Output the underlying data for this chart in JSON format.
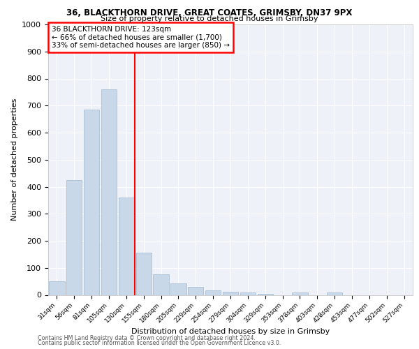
{
  "title1": "36, BLACKTHORN DRIVE, GREAT COATES, GRIMSBY, DN37 9PX",
  "title2": "Size of property relative to detached houses in Grimsby",
  "xlabel": "Distribution of detached houses by size in Grimsby",
  "ylabel": "Number of detached properties",
  "bar_color": "#c8d8e8",
  "bar_edge_color": "#a0b8d0",
  "bg_color": "#eef2f8",
  "grid_color": "white",
  "categories": [
    "31sqm",
    "56sqm",
    "81sqm",
    "105sqm",
    "130sqm",
    "155sqm",
    "180sqm",
    "205sqm",
    "229sqm",
    "254sqm",
    "279sqm",
    "304sqm",
    "329sqm",
    "353sqm",
    "378sqm",
    "403sqm",
    "428sqm",
    "453sqm",
    "477sqm",
    "502sqm",
    "527sqm"
  ],
  "values": [
    50,
    425,
    685,
    760,
    360,
    155,
    75,
    42,
    30,
    18,
    12,
    8,
    5,
    0,
    8,
    0,
    8,
    0,
    0,
    0,
    0
  ],
  "property_line_color": "red",
  "property_line_index": 4,
  "annotation_text": "36 BLACKTHORN DRIVE: 123sqm\n← 66% of detached houses are smaller (1,700)\n33% of semi-detached houses are larger (850) →",
  "annotation_box_color": "white",
  "annotation_box_edge_color": "red",
  "ylim": [
    0,
    1000
  ],
  "yticks": [
    0,
    100,
    200,
    300,
    400,
    500,
    600,
    700,
    800,
    900,
    1000
  ],
  "footer1": "Contains HM Land Registry data © Crown copyright and database right 2024.",
  "footer2": "Contains public sector information licensed under the Open Government Licence v3.0."
}
